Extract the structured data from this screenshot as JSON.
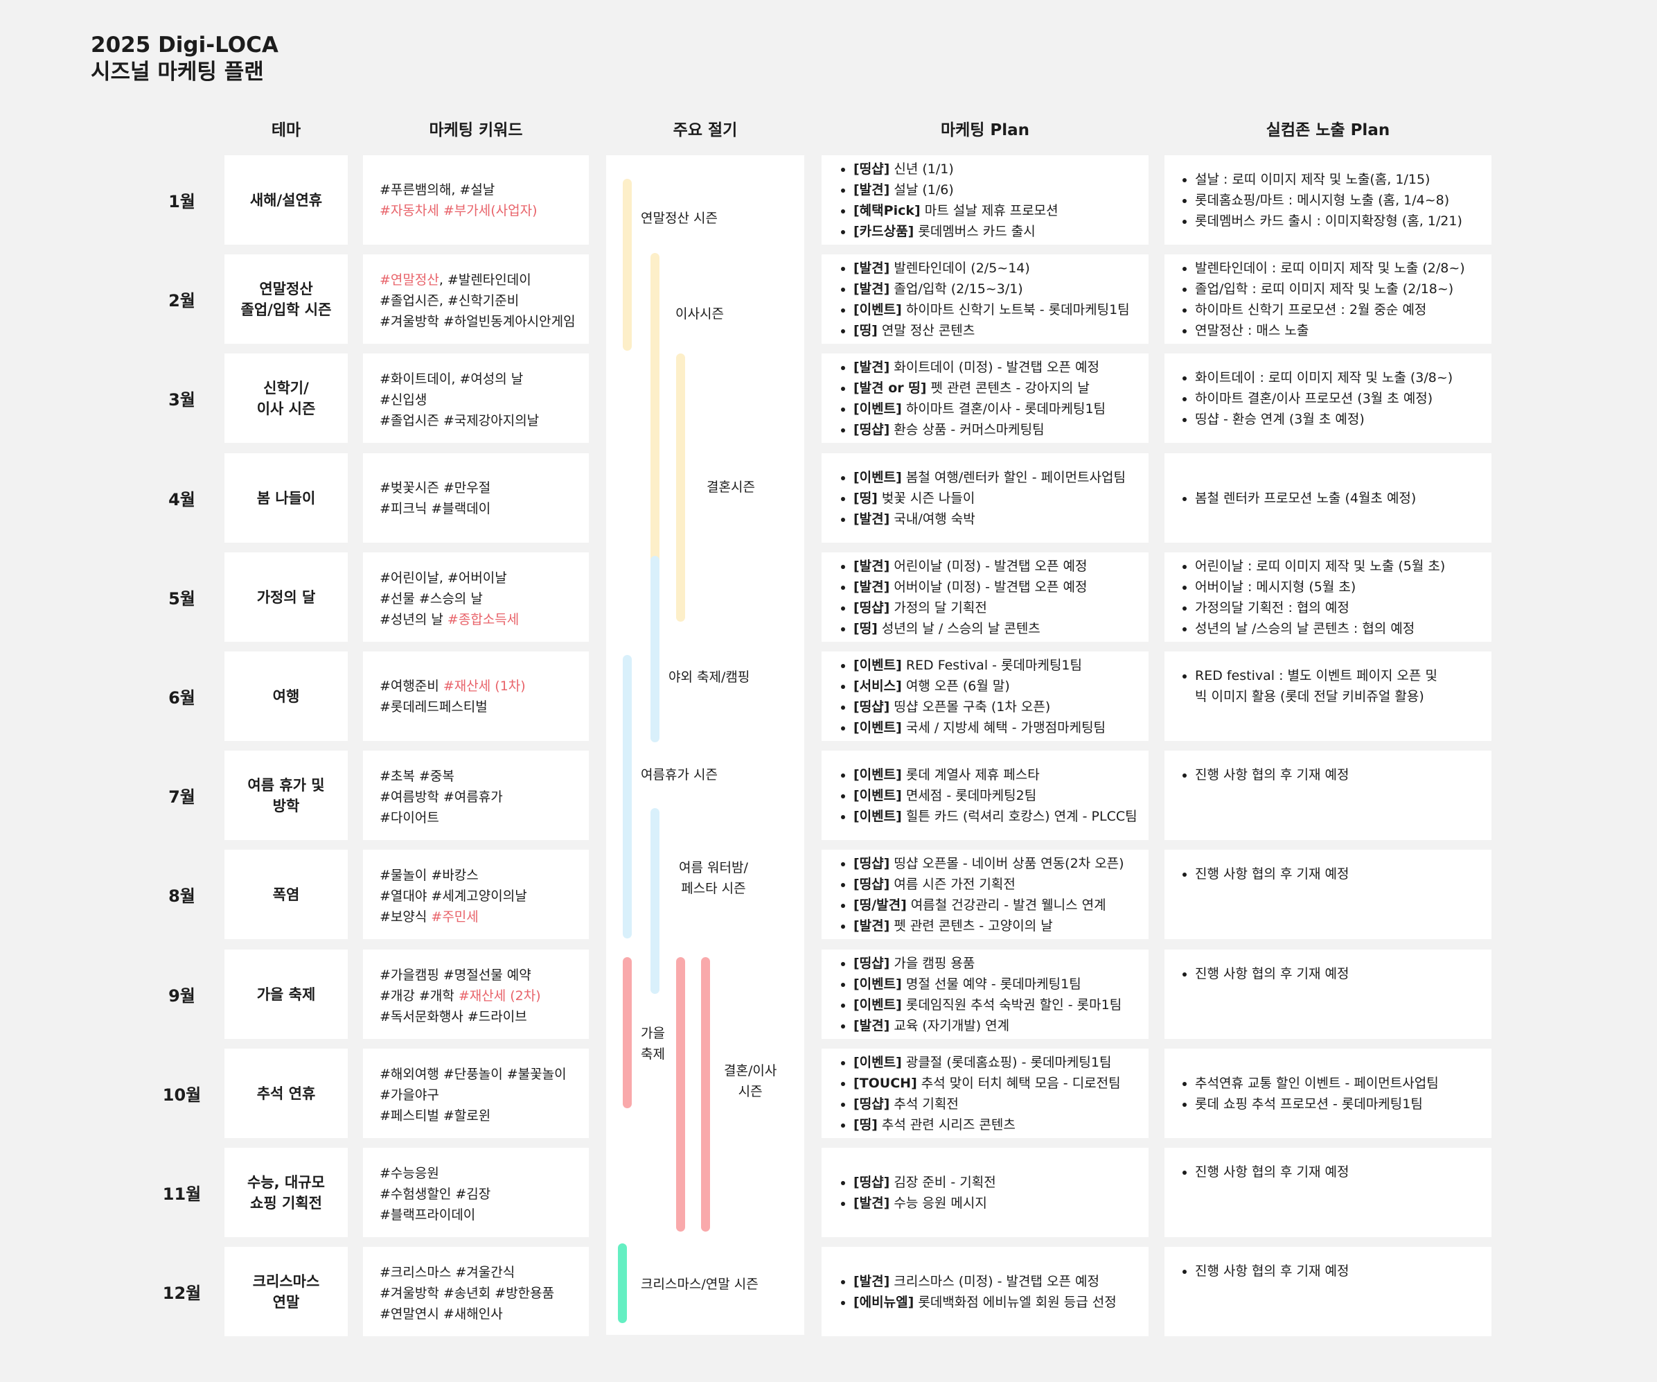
{
  "title": {
    "line1": "2025 Digi-LOCA",
    "line2": "시즈널 마케팅 플랜"
  },
  "headers": {
    "theme": "테마",
    "keyword": "마케팅 키워드",
    "season": "주요 절기",
    "plan": "마케팅 Plan",
    "exposure": "실컴존 노출 Plan"
  },
  "rows": [
    {
      "month": "1월",
      "theme": [
        "새해/설연휴"
      ],
      "keywords": [
        [
          {
            "t": "#푸른뱀의해, #설날"
          }
        ],
        [
          {
            "t": "#자동차세 #부가세(사업자)",
            "r": true
          }
        ]
      ],
      "plan": [
        {
          "tag": "[띵샵]",
          "text": " 신년 (1/1)"
        },
        {
          "tag": "[발견]",
          "text": " 설날 (1/6)"
        },
        {
          "tag": "[혜택Pick]",
          "text": " 마트 설날 제휴 프로모션"
        },
        {
          "tag": "[카드상품]",
          "text": " 롯데멤버스 카드 출시"
        }
      ],
      "exposure": [
        "설날 : 로띠 이미지 제작 및 노출(홈, 1/15)",
        "롯데홈쇼핑/마트 : 메시지형 노출 (홈, 1/4~8)",
        "롯데멤버스 카드 출시 : 이미지확장형 (홈, 1/21)"
      ]
    },
    {
      "month": "2월",
      "theme": [
        "연말정산",
        "졸업/입학 시즌"
      ],
      "keywords": [
        [
          {
            "t": "#연말정산",
            "r": true
          },
          {
            "t": ", #발렌타인데이"
          }
        ],
        [
          {
            "t": "#졸업시즌, #신학기준비"
          }
        ],
        [
          {
            "t": "#겨울방학 #하얼빈동계아시안게임"
          }
        ]
      ],
      "plan": [
        {
          "tag": "[발견]",
          "text": " 발렌타인데이 (2/5~14)"
        },
        {
          "tag": "[발견]",
          "text": " 졸업/입학 (2/15~3/1)"
        },
        {
          "tag": "[이벤트]",
          "text": " 하이마트 신학기 노트북 - 롯데마케팅1팀"
        },
        {
          "tag": "[띵]",
          "text": " 연말 정산 콘텐츠"
        }
      ],
      "exposure": [
        "발렌타인데이 : 로띠 이미지 제작 및 노출 (2/8~)",
        "졸업/입학 : 로띠 이미지 제작 및 노출 (2/18~)",
        "하이마트 신학기 프로모션 : 2월 중순 예정",
        "연말정산 : 매스 노출"
      ]
    },
    {
      "month": "3월",
      "theme": [
        "신학기/",
        "이사 시즌"
      ],
      "keywords": [
        [
          {
            "t": "#화이트데이, #여성의 날"
          }
        ],
        [
          {
            "t": "#신입생"
          }
        ],
        [
          {
            "t": "#졸업시즌 #국제강아지의날"
          }
        ]
      ],
      "plan": [
        {
          "tag": "[발견]",
          "text": " 화이트데이 (미정) - 발견탭 오픈 예정"
        },
        {
          "tag": "[발견 or 띵]",
          "text": " 펫 관련 콘텐츠 - 강아지의 날"
        },
        {
          "tag": "[이벤트]",
          "text": " 하이마트 결혼/이사 - 롯데마케팅1팀"
        },
        {
          "tag": "[띵샵]",
          "text": " 환승 상품 - 커머스마케팅팀"
        }
      ],
      "exposure": [
        "화이트데이 : 로띠 이미지 제작 및 노출 (3/8~)",
        "하이마트 결혼/이사 프로모션 (3월 초 예정)",
        "띵샵 - 환승 연계 (3월 초 예정)"
      ]
    },
    {
      "month": "4월",
      "theme": [
        "봄 나들이"
      ],
      "keywords": [
        [
          {
            "t": "#벚꽃시즌 #만우절"
          }
        ],
        [
          {
            "t": "#피크닉 #블랙데이"
          }
        ]
      ],
      "plan": [
        {
          "tag": "[이벤트]",
          "text": " 봄철 여행/렌터카 할인 - 페이먼트사업팀"
        },
        {
          "tag": "[띵]",
          "text": " 벚꽃 시즌 나들이"
        },
        {
          "tag": "[발견]",
          "text": " 국내/여행 숙박"
        }
      ],
      "exposure": [
        "봄철 렌터카 프로모션 노출 (4월초 예정)"
      ]
    },
    {
      "month": "5월",
      "theme": [
        "가정의 달"
      ],
      "keywords": [
        [
          {
            "t": "#어린이날, #어버이날"
          }
        ],
        [
          {
            "t": "#선물 #스승의 날"
          }
        ],
        [
          {
            "t": "#성년의 날 "
          },
          {
            "t": "#종합소득세",
            "r": true
          }
        ]
      ],
      "plan": [
        {
          "tag": "[발견]",
          "text": " 어린이날 (미정) - 발견탭 오픈 예정"
        },
        {
          "tag": "[발견]",
          "text": " 어버이날 (미정) - 발견탭 오픈 예정"
        },
        {
          "tag": "[띵샵]",
          "text": " 가정의 달 기획전"
        },
        {
          "tag": "[띵]",
          "text": " 성년의 날 / 스승의 날 콘텐츠"
        }
      ],
      "exposure": [
        "어린이날 : 로띠 이미지 제작 및 노출 (5월 초)",
        "어버이날 : 메시지형 (5월 초)",
        "가정의달 기획전 : 협의 예정",
        "성년의 날 /스승의 날 콘텐츠 : 협의 예정"
      ]
    },
    {
      "month": "6월",
      "theme": [
        "여행"
      ],
      "keywords": [
        [
          {
            "t": "#여행준비 "
          },
          {
            "t": "#재산세 (1차)",
            "r": true
          }
        ],
        [
          {
            "t": "#롯데레드페스티벌"
          }
        ]
      ],
      "plan": [
        {
          "tag": "[이벤트]",
          "text": " RED Festival - 롯데마케팅1팀"
        },
        {
          "tag": "[서비스]",
          "text": " 여행 오픈 (6월 말)"
        },
        {
          "tag": "[띵샵]",
          "text": " 띵샵 오픈몰 구축 (1차 오픈)"
        },
        {
          "tag": "[이벤트]",
          "text": " 국세 / 지방세 혜택 - 가맹점마케팅팀"
        }
      ],
      "exposure": [
        "RED festival : 별도 이벤트 페이지 오픈 및\n빅 이미지 활용 (롯데 전달 키비쥬얼 활용)"
      ]
    },
    {
      "month": "7월",
      "theme": [
        "여름 휴가 및",
        "방학"
      ],
      "keywords": [
        [
          {
            "t": "#초복 #중복"
          }
        ],
        [
          {
            "t": "#여름방학 #여름휴가"
          }
        ],
        [
          {
            "t": "#다이어트"
          }
        ]
      ],
      "plan": [
        {
          "tag": "[이벤트]",
          "text": " 롯데 계열사 제휴 페스타"
        },
        {
          "tag": "[이벤트]",
          "text": " 면세점 - 롯데마케팅2팀"
        },
        {
          "tag": "[이벤트]",
          "text": " 힐튼 카드 (럭셔리 호캉스) 연계 - PLCC팀"
        }
      ],
      "exposure": [
        "진행 사항 협의 후 기재 예정"
      ]
    },
    {
      "month": "8월",
      "theme": [
        "폭염"
      ],
      "keywords": [
        [
          {
            "t": "#물놀이 #바캉스"
          }
        ],
        [
          {
            "t": "#열대야 #세계고양이의날"
          }
        ],
        [
          {
            "t": "#보양식 "
          },
          {
            "t": "#주민세",
            "r": true
          }
        ]
      ],
      "plan": [
        {
          "tag": "[띵샵]",
          "text": " 띵샵 오픈몰 - 네이버 상품 연동(2차 오픈)"
        },
        {
          "tag": "[띵샵]",
          "text": " 여름 시즌 가전 기획전"
        },
        {
          "tag": "[띵/발견]",
          "text": " 여름철 건강관리 - 발견 웰니스 연계"
        },
        {
          "tag": "[발견]",
          "text": " 펫 관련 콘텐츠 - 고양이의 날"
        }
      ],
      "exposure": [
        "진행 사항 협의 후 기재 예정"
      ]
    },
    {
      "month": "9월",
      "theme": [
        "가을 축제"
      ],
      "keywords": [
        [
          {
            "t": "#가을캠핑 #명절선물 예약"
          }
        ],
        [
          {
            "t": "#개강 #개학 "
          },
          {
            "t": "#재산세 (2차)",
            "r": true
          }
        ],
        [
          {
            "t": "#독서문화행사 #드라이브"
          }
        ]
      ],
      "plan": [
        {
          "tag": "[띵샵]",
          "text": " 가을 캠핑 용품"
        },
        {
          "tag": "[이벤트]",
          "text": " 명절 선물 예약 - 롯데마케팅1팀"
        },
        {
          "tag": "[이벤트]",
          "text": " 롯데임직원 추석 숙박권 할인 - 롯마1팀"
        },
        {
          "tag": "[발견]",
          "text": " 교육 (자기개발) 연계"
        }
      ],
      "exposure": [
        "진행 사항 협의 후 기재 예정"
      ]
    },
    {
      "month": "10월",
      "theme": [
        "추석 연휴"
      ],
      "keywords": [
        [
          {
            "t": "#해외여행 #단풍놀이 #불꽃놀이"
          }
        ],
        [
          {
            "t": "#가을야구"
          }
        ],
        [
          {
            "t": "#페스티벌 #할로윈"
          }
        ]
      ],
      "plan": [
        {
          "tag": "[이벤트]",
          "text": " 광클절 (롯데홈쇼핑) - 롯데마케팅1팀"
        },
        {
          "tag": "[TOUCH]",
          "text": " 추석 맞이 터치 혜택 모음 - 디로전팀"
        },
        {
          "tag": "[띵샵]",
          "text": " 추석 기획전"
        },
        {
          "tag": "[띵]",
          "text": " 추석 관련 시리즈 콘텐츠"
        }
      ],
      "exposure": [
        "추석연휴 교통 할인 이벤트 - 페이먼트사업팀",
        "롯데 쇼핑 추석 프로모션 - 롯데마케팅1팀"
      ]
    },
    {
      "month": "11월",
      "theme": [
        "수능, 대규모",
        "쇼핑 기획전"
      ],
      "keywords": [
        [
          {
            "t": "#수능응원"
          }
        ],
        [
          {
            "t": "#수험생할인 #김장"
          }
        ],
        [
          {
            "t": "#블랙프라이데이"
          }
        ]
      ],
      "plan": [
        {
          "tag": "[띵샵]",
          "text": " 김장 준비 - 기획전"
        },
        {
          "tag": "[발견]",
          "text": " 수능 응원 메시지"
        }
      ],
      "exposure": [
        "진행 사항 협의 후 기재 예정"
      ]
    },
    {
      "month": "12월",
      "theme": [
        "크리스마스",
        "연말"
      ],
      "keywords": [
        [
          {
            "t": "#크리스마스 #겨울간식"
          }
        ],
        [
          {
            "t": "#겨울방학 #송년회 #방한용품"
          }
        ],
        [
          {
            "t": "#연말연시 #새해인사"
          }
        ]
      ],
      "plan": [
        {
          "tag": "[발견]",
          "text": " 크리스마스 (미정) - 발견탭 오픈 예정"
        },
        {
          "tag": "[에비뉴엘]",
          "text": " 롯데백화점 에비뉴엘 회원 등급 선정"
        }
      ],
      "exposure": [
        "진행 사항 협의 후 기재 예정"
      ]
    }
  ],
  "seasons": [
    {
      "label": "연말정산 시즌",
      "color": "#fdefc9"
    },
    {
      "label": "이사시즌",
      "color": "#fdefc9"
    },
    {
      "label": "결혼시즌",
      "color": "#fdefc9"
    },
    {
      "label": "야외 축제/캠핑",
      "color": "#d9f0fb"
    },
    {
      "label": "여름휴가 시즌",
      "color": "#d9f0fb"
    },
    {
      "label": "여름 워터밤/\n페스타 시즌",
      "color": "#d9f0fb"
    },
    {
      "label": "가을\n축제",
      "color": "#f9a9ab"
    },
    {
      "label": "결혼/이사\n시즌",
      "color": "#f9a9ab"
    },
    {
      "label": "크리스마스/연말 시즌",
      "color": "#64efc2"
    }
  ]
}
